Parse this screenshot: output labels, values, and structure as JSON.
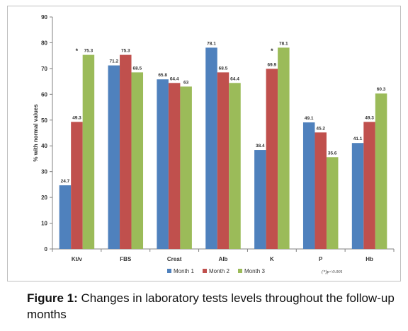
{
  "chart_data": {
    "type": "bar",
    "categories": [
      "Kt/v",
      "FBS",
      "Creat",
      "Alb",
      "K",
      "P",
      "Hb"
    ],
    "series": [
      {
        "name": "Month 1",
        "color": "#4f81bd",
        "values": [
          24.7,
          71.2,
          65.8,
          78.1,
          38.4,
          49.1,
          41.1
        ]
      },
      {
        "name": "Month 2",
        "color": "#c0504d",
        "values": [
          49.3,
          75.3,
          64.4,
          68.5,
          69.9,
          45.2,
          49.3
        ]
      },
      {
        "name": "Month 3",
        "color": "#9bbb59",
        "values": [
          75.3,
          68.5,
          63,
          64.4,
          78.1,
          35.6,
          60.3
        ]
      }
    ],
    "data_labels": [
      [
        "24.7",
        "71.2",
        "65.8",
        "78.1",
        "38.4",
        "49.1",
        "41.1"
      ],
      [
        "49.3",
        "75.3",
        "64.4",
        "68.5",
        "69.9",
        "45.2",
        "49.3"
      ],
      [
        "75.3",
        "68.5",
        "63",
        "64.4",
        "78.1",
        "35.6",
        "60.3"
      ]
    ],
    "ylabel": "% with normal values",
    "ylim": [
      0,
      90
    ],
    "yticks": [
      "0",
      "10",
      "20",
      "30",
      "40",
      "50",
      "60",
      "70",
      "80",
      "90"
    ],
    "annotations": [
      {
        "category": "Kt/v",
        "text": "*"
      },
      {
        "category": "K",
        "text": "*"
      }
    ],
    "footnote": "(*)p<0.001",
    "legend_position": "bottom",
    "grid": false
  },
  "caption": {
    "label": "Figure 1:",
    "text": " Changes in laboratory tests levels throughout the follow-up months"
  }
}
